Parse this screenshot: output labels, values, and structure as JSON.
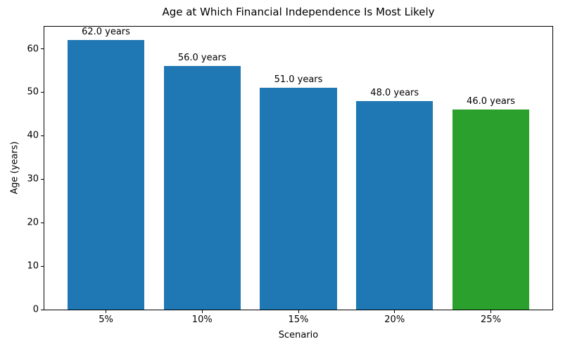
{
  "chart_data": {
    "type": "bar",
    "title": "Age at Which Financial Independence Is Most Likely",
    "xlabel": "Scenario",
    "ylabel": "Age (years)",
    "categories": [
      "5%",
      "10%",
      "15%",
      "20%",
      "25%"
    ],
    "values": [
      62.0,
      56.0,
      51.0,
      48.0,
      46.0
    ],
    "bar_labels": [
      "62.0 years",
      "56.0 years",
      "51.0 years",
      "48.0 years",
      "46.0 years"
    ],
    "bar_colors": [
      "#1f77b4",
      "#1f77b4",
      "#1f77b4",
      "#1f77b4",
      "#2ca02c"
    ],
    "default_bar_color": "#1f77b4",
    "highlight_color": "#2ca02c",
    "ylim": [
      0,
      65.1
    ],
    "yticks": [
      0,
      10,
      20,
      30,
      40,
      50,
      60
    ],
    "bar_width_fraction": 0.8,
    "grid": false,
    "legend_position": "none"
  }
}
